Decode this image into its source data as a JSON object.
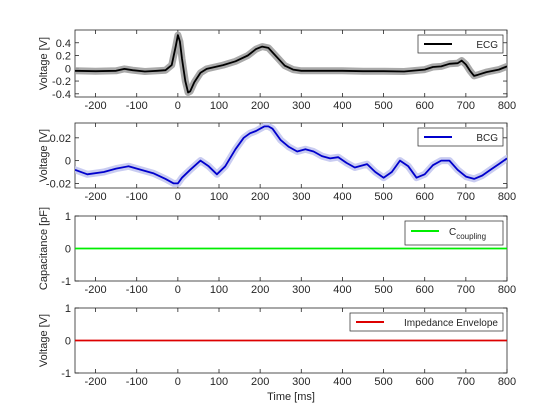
{
  "chart_data": [
    {
      "type": "line",
      "ylabel": "Voltage [V]",
      "xlabel": "",
      "xlim": [
        -250,
        800
      ],
      "ylim": [
        -0.45,
        0.6
      ],
      "xticks": [
        -200,
        -100,
        0,
        100,
        200,
        300,
        400,
        500,
        600,
        700,
        800
      ],
      "yticks": [
        -0.4,
        -0.2,
        0,
        0.2,
        0.4
      ],
      "ytick_labels": [
        "-0.4",
        "-0.2",
        "0",
        "0.2",
        "0.4"
      ],
      "legend": {
        "position": "top-right"
      },
      "series": [
        {
          "name": "ECG",
          "color": "#000000",
          "band_color": "#a0a0a0",
          "x": [
            -250,
            -200,
            -150,
            -130,
            -110,
            -80,
            -50,
            -30,
            -15,
            -5,
            0,
            5,
            10,
            18,
            25,
            30,
            40,
            55,
            70,
            90,
            110,
            140,
            170,
            190,
            205,
            220,
            240,
            260,
            280,
            300,
            350,
            400,
            450,
            500,
            550,
            600,
            620,
            640,
            660,
            680,
            690,
            700,
            710,
            720,
            730,
            750,
            780,
            800
          ],
          "y": [
            -0.04,
            -0.045,
            -0.04,
            -0.01,
            -0.03,
            -0.05,
            -0.04,
            -0.03,
            0.05,
            0.35,
            0.52,
            0.42,
            0.15,
            -0.2,
            -0.38,
            -0.36,
            -0.22,
            -0.07,
            -0.01,
            0.02,
            0.05,
            0.11,
            0.2,
            0.3,
            0.34,
            0.32,
            0.18,
            0.04,
            -0.02,
            -0.04,
            -0.04,
            -0.04,
            -0.045,
            -0.045,
            -0.05,
            -0.02,
            0.02,
            0.03,
            0.07,
            0.08,
            0.12,
            0.06,
            -0.04,
            -0.12,
            -0.1,
            -0.06,
            -0.02,
            0.03
          ]
        }
      ]
    },
    {
      "type": "line",
      "ylabel": "Voltage [V]",
      "xlabel": "",
      "xlim": [
        -250,
        800
      ],
      "ylim": [
        -0.024,
        0.033
      ],
      "xticks": [
        -200,
        -100,
        0,
        100,
        200,
        300,
        400,
        500,
        600,
        700,
        800
      ],
      "yticks": [
        -0.02,
        0,
        0.02
      ],
      "ytick_labels": [
        "-0.02",
        "0",
        "0.02"
      ],
      "legend": {
        "position": "top-right"
      },
      "series": [
        {
          "name": "BCG",
          "color": "#0000cc",
          "band_color": "#c3c6f0",
          "x": [
            -250,
            -220,
            -180,
            -150,
            -120,
            -90,
            -60,
            -30,
            -10,
            0,
            10,
            30,
            55,
            75,
            95,
            115,
            140,
            160,
            175,
            190,
            200,
            210,
            220,
            230,
            250,
            270,
            290,
            310,
            330,
            350,
            370,
            390,
            410,
            430,
            460,
            480,
            500,
            520,
            540,
            560,
            580,
            600,
            620,
            640,
            660,
            680,
            700,
            720,
            740,
            760,
            780,
            800
          ],
          "y": [
            -0.008,
            -0.012,
            -0.01,
            -0.007,
            -0.005,
            -0.008,
            -0.011,
            -0.016,
            -0.02,
            -0.02,
            -0.015,
            -0.008,
            0.0,
            -0.005,
            -0.012,
            -0.005,
            0.01,
            0.02,
            0.024,
            0.026,
            0.028,
            0.03,
            0.03,
            0.028,
            0.018,
            0.012,
            0.008,
            0.01,
            0.008,
            0.004,
            0.002,
            0.003,
            -0.002,
            -0.006,
            -0.003,
            -0.01,
            -0.015,
            -0.01,
            0.0,
            -0.005,
            -0.015,
            -0.012,
            -0.004,
            0.0,
            0.0,
            -0.008,
            -0.014,
            -0.016,
            -0.013,
            -0.008,
            -0.003,
            0.002
          ]
        }
      ]
    },
    {
      "type": "line",
      "ylabel": "Capacitance [pF]",
      "xlabel": "",
      "xlim": [
        -250,
        800
      ],
      "ylim": [
        -1,
        1
      ],
      "xticks": [
        -200,
        -100,
        0,
        100,
        200,
        300,
        400,
        500,
        600,
        700,
        800
      ],
      "yticks": [
        -1,
        0,
        1
      ],
      "ytick_labels": [
        "-1",
        "0",
        "1"
      ],
      "legend": {
        "position": "top-right"
      },
      "series": [
        {
          "name": "C",
          "name_subscript": "coupling",
          "color": "#00ee00",
          "x": [
            -250,
            800
          ],
          "y": [
            0,
            0
          ]
        }
      ]
    },
    {
      "type": "line",
      "ylabel": "Voltage [V]",
      "xlabel": "Time [ms]",
      "xlim": [
        -250,
        800
      ],
      "ylim": [
        -1,
        1
      ],
      "xticks": [
        -200,
        -100,
        0,
        100,
        200,
        300,
        400,
        500,
        600,
        700,
        800
      ],
      "yticks": [
        -1,
        0,
        1
      ],
      "ytick_labels": [
        "-1",
        "0",
        "1"
      ],
      "legend": {
        "position": "top-right"
      },
      "series": [
        {
          "name": "Impedance Envelope",
          "color": "#dd0000",
          "x": [
            -250,
            800
          ],
          "y": [
            0,
            0
          ]
        }
      ]
    }
  ]
}
